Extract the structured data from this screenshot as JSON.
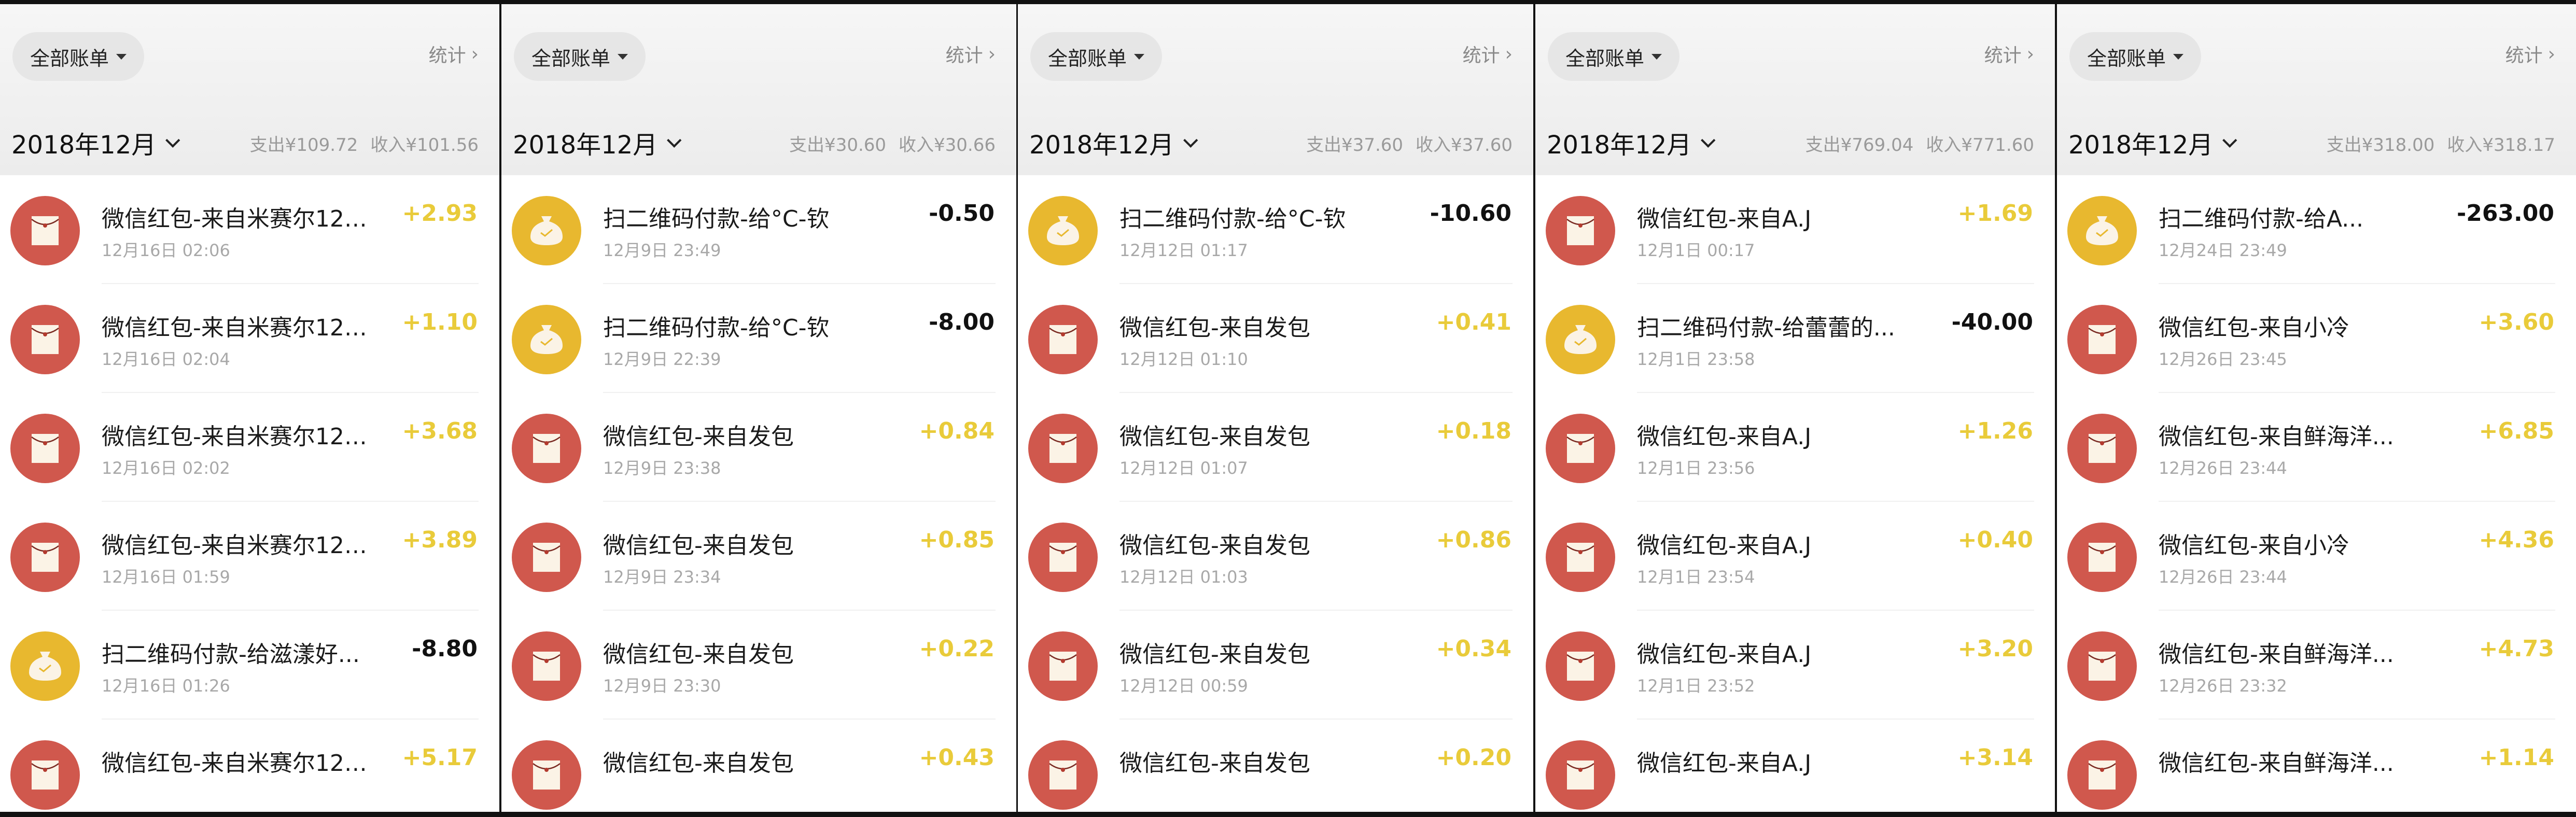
{
  "colors": {
    "red_envelope": "#d0584d",
    "qr_payment": "#e8b82f",
    "income_amount": "#e9cb3a",
    "expense_amount": "#111111"
  },
  "panels": [
    {
      "filter_label": "全部账单",
      "stats_label": "统计",
      "month": "2018年12月",
      "expense": "支出¥109.72",
      "income": "收入¥101.56",
      "rows": [
        {
          "type": "red-envelope",
          "title": "微信红包-来自米赛尔12-...",
          "date": "12月16日 02:06",
          "amount": "+2.93",
          "direction": "in"
        },
        {
          "type": "red-envelope",
          "title": "微信红包-来自米赛尔12-...",
          "date": "12月16日 02:04",
          "amount": "+1.10",
          "direction": "in"
        },
        {
          "type": "red-envelope",
          "title": "微信红包-来自米赛尔12-...",
          "date": "12月16日 02:02",
          "amount": "+3.68",
          "direction": "in"
        },
        {
          "type": "red-envelope",
          "title": "微信红包-来自米赛尔12-...",
          "date": "12月16日 01:59",
          "amount": "+3.89",
          "direction": "in"
        },
        {
          "type": "qr-payment",
          "title": "扫二维码付款-给滋漾好...",
          "date": "12月16日 01:26",
          "amount": "-8.80",
          "direction": "out"
        },
        {
          "type": "red-envelope",
          "title": "微信红包-来自米赛尔12-...",
          "date": "",
          "amount": "+5.17",
          "direction": "in"
        }
      ]
    },
    {
      "filter_label": "全部账单",
      "stats_label": "统计",
      "month": "2018年12月",
      "expense": "支出¥30.60",
      "income": "收入¥30.66",
      "rows": [
        {
          "type": "qr-payment",
          "title": "扫二维码付款-给°C-钦",
          "date": "12月9日 23:49",
          "amount": "-0.50",
          "direction": "out"
        },
        {
          "type": "qr-payment",
          "title": "扫二维码付款-给°C-钦",
          "date": "12月9日 22:39",
          "amount": "-8.00",
          "direction": "out"
        },
        {
          "type": "red-envelope",
          "title": "微信红包-来自发包",
          "date": "12月9日 23:38",
          "amount": "+0.84",
          "direction": "in"
        },
        {
          "type": "red-envelope",
          "title": "微信红包-来自发包",
          "date": "12月9日 23:34",
          "amount": "+0.85",
          "direction": "in"
        },
        {
          "type": "red-envelope",
          "title": "微信红包-来自发包",
          "date": "12月9日 23:30",
          "amount": "+0.22",
          "direction": "in"
        },
        {
          "type": "red-envelope",
          "title": "微信红包-来自发包",
          "date": "",
          "amount": "+0.43",
          "direction": "in"
        }
      ]
    },
    {
      "filter_label": "全部账单",
      "stats_label": "统计",
      "month": "2018年12月",
      "expense": "支出¥37.60",
      "income": "收入¥37.60",
      "rows": [
        {
          "type": "qr-payment",
          "title": "扫二维码付款-给°C-钦",
          "date": "12月12日 01:17",
          "amount": "-10.60",
          "direction": "out"
        },
        {
          "type": "red-envelope",
          "title": "微信红包-来自发包",
          "date": "12月12日 01:10",
          "amount": "+0.41",
          "direction": "in"
        },
        {
          "type": "red-envelope",
          "title": "微信红包-来自发包",
          "date": "12月12日 01:07",
          "amount": "+0.18",
          "direction": "in"
        },
        {
          "type": "red-envelope",
          "title": "微信红包-来自发包",
          "date": "12月12日 01:03",
          "amount": "+0.86",
          "direction": "in"
        },
        {
          "type": "red-envelope",
          "title": "微信红包-来自发包",
          "date": "12月12日 00:59",
          "amount": "+0.34",
          "direction": "in"
        },
        {
          "type": "red-envelope",
          "title": "微信红包-来自发包",
          "date": "",
          "amount": "+0.20",
          "direction": "in"
        }
      ]
    },
    {
      "filter_label": "全部账单",
      "stats_label": "统计",
      "month": "2018年12月",
      "expense": "支出¥769.04",
      "income": "收入¥771.60",
      "rows": [
        {
          "type": "red-envelope",
          "title": "微信红包-来自A.J",
          "date": "12月1日 00:17",
          "amount": "+1.69",
          "direction": "in"
        },
        {
          "type": "qr-payment",
          "title": "扫二维码付款-给蕾蕾的...",
          "date": "12月1日 23:58",
          "amount": "-40.00",
          "direction": "out"
        },
        {
          "type": "red-envelope",
          "title": "微信红包-来自A.J",
          "date": "12月1日 23:56",
          "amount": "+1.26",
          "direction": "in"
        },
        {
          "type": "red-envelope",
          "title": "微信红包-来自A.J",
          "date": "12月1日 23:54",
          "amount": "+0.40",
          "direction": "in"
        },
        {
          "type": "red-envelope",
          "title": "微信红包-来自A.J",
          "date": "12月1日 23:52",
          "amount": "+3.20",
          "direction": "in"
        },
        {
          "type": "red-envelope",
          "title": "微信红包-来自A.J",
          "date": "",
          "amount": "+3.14",
          "direction": "in"
        }
      ]
    },
    {
      "filter_label": "全部账单",
      "stats_label": "统计",
      "month": "2018年12月",
      "expense": "支出¥318.00",
      "income": "收入¥318.17",
      "rows": [
        {
          "type": "qr-payment",
          "title": "扫二维码付款-给A...",
          "date": "12月24日 23:49",
          "amount": "-263.00",
          "direction": "out"
        },
        {
          "type": "red-envelope",
          "title": "微信红包-来自小冷",
          "date": "12月26日 23:45",
          "amount": "+3.60",
          "direction": "in"
        },
        {
          "type": "red-envelope",
          "title": "微信红包-来自鲜海洋...",
          "date": "12月26日 23:44",
          "amount": "+6.85",
          "direction": "in"
        },
        {
          "type": "red-envelope",
          "title": "微信红包-来自小冷",
          "date": "12月26日 23:44",
          "amount": "+4.36",
          "direction": "in"
        },
        {
          "type": "red-envelope",
          "title": "微信红包-来自鲜海洋...",
          "date": "12月26日 23:32",
          "amount": "+4.73",
          "direction": "in"
        },
        {
          "type": "red-envelope",
          "title": "微信红包-来自鲜海洋...",
          "date": "",
          "amount": "+1.14",
          "direction": "in"
        }
      ]
    }
  ]
}
